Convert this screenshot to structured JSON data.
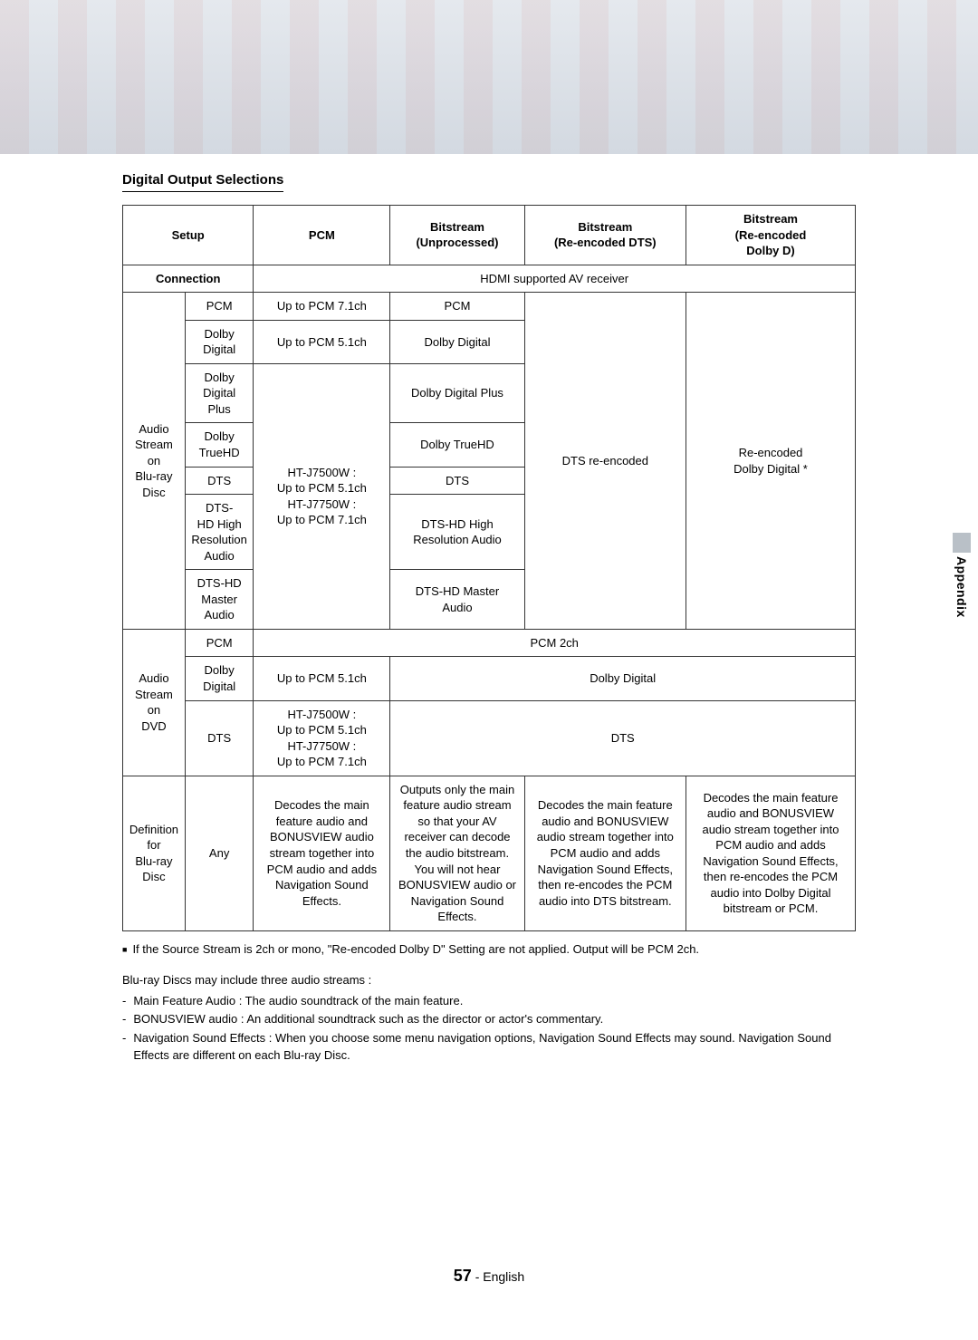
{
  "section_title": "Digital Output Selections",
  "side_tab": "Appendix",
  "headers": {
    "setup": "Setup",
    "pcm": "PCM",
    "bs_un": "Bitstream\n(Unprocessed)",
    "bs_dts": "Bitstream\n(Re-encoded DTS)",
    "bs_dd": "Bitstream\n(Re-encoded\nDolby D)",
    "connection": "Connection",
    "hdmi": "HDMI supported AV receiver"
  },
  "bluray_group": "Audio\nStream on\nBlu-ray Disc",
  "bluray_rows": {
    "pcm": {
      "label": "PCM",
      "pcm": "Up to PCM 7.1ch",
      "un": "PCM"
    },
    "dd": {
      "label": "Dolby Digital",
      "pcm": "Up to PCM 5.1ch",
      "un": "Dolby Digital"
    },
    "ddp": {
      "label": "Dolby Digital\nPlus",
      "un": "Dolby Digital Plus"
    },
    "dthd": {
      "label": "Dolby\nTrueHD",
      "un": "Dolby TrueHD"
    },
    "dts": {
      "label": "DTS",
      "un": "DTS"
    },
    "dtshr": {
      "label": "DTS-\nHD High\nResolution\nAudio",
      "un": "DTS-HD High\nResolution Audio"
    },
    "dtsma": {
      "label": "DTS-HD\nMaster\nAudio",
      "un": "DTS-HD Master\nAudio"
    },
    "pcm_shared": "HT-J7500W :\nUp to PCM 5.1ch\nHT-J7750W :\nUp to PCM 7.1ch",
    "dts_col": "DTS re-encoded",
    "dd_col": "Re-encoded\nDolby Digital *"
  },
  "dvd_group": "Audio\nStream on\nDVD",
  "dvd_rows": {
    "pcm": {
      "label": "PCM",
      "merged": "PCM 2ch"
    },
    "dd": {
      "label": "Dolby Digital",
      "pcm": "Up to PCM 5.1ch",
      "merged": "Dolby Digital"
    },
    "dts": {
      "label": "DTS",
      "pcm": "HT-J7500W :\nUp to PCM 5.1ch\nHT-J7750W :\nUp to PCM 7.1ch",
      "merged": "DTS"
    }
  },
  "def_row": {
    "group": "Definition for\nBlu-ray Disc",
    "label": "Any",
    "pcm": "Decodes the main feature audio and BONUSVIEW audio stream together into PCM audio and adds Navigation Sound Effects.",
    "un": "Outputs only the main feature audio stream so that your AV receiver can decode the audio bitstream.\nYou will not hear BONUSVIEW audio or Navigation Sound Effects.",
    "dts": "Decodes the main feature audio and BONUSVIEW audio stream together into PCM audio and adds Navigation Sound Effects, then re-encodes the PCM audio into DTS bitstream.",
    "dd": "Decodes the main feature audio and BONUSVIEW audio stream together into PCM audio and adds Navigation Sound Effects, then re-encodes the PCM audio into Dolby Digital bitstream or PCM."
  },
  "bullet_note": "If the Source Stream is 2ch or mono, \"Re-encoded Dolby D\" Setting are not applied. Output will be PCM 2ch.",
  "para": "Blu-ray Discs may include three audio streams :",
  "dash": {
    "a": "Main Feature Audio : The audio soundtrack of the main feature.",
    "b": "BONUSVIEW audio : An additional soundtrack such as the director or actor's commentary.",
    "c": "Navigation Sound Effects : When you choose some menu navigation options, Navigation Sound Effects may sound. Navigation Sound Effects are different on each Blu-ray Disc."
  },
  "footer": {
    "page": "57",
    "lang": "- English"
  }
}
